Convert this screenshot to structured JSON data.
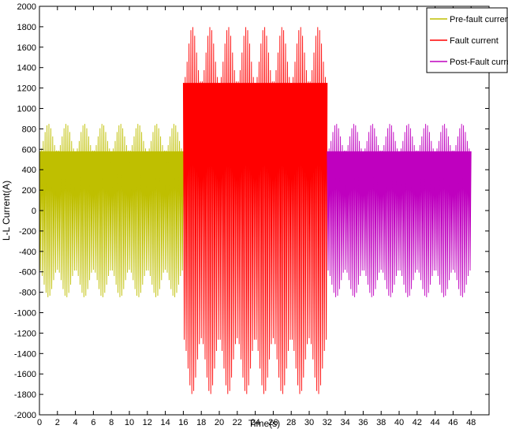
{
  "chart_data": {
    "type": "line",
    "xlabel": "Time(s)",
    "ylabel": "L-L Current(A)",
    "xlim": [
      0,
      50
    ],
    "ylim": [
      -2000,
      2000
    ],
    "x_ticks": [
      0,
      2,
      4,
      6,
      8,
      10,
      12,
      14,
      16,
      18,
      20,
      22,
      24,
      26,
      28,
      30,
      32,
      34,
      36,
      38,
      40,
      42,
      44,
      46,
      48
    ],
    "y_ticks": [
      -2000,
      -1800,
      -1600,
      -1400,
      -1200,
      -1000,
      -800,
      -600,
      -400,
      -200,
      0,
      200,
      400,
      600,
      800,
      1000,
      1200,
      1400,
      1600,
      1800,
      2000
    ],
    "grid": false,
    "legend_position": "top-right",
    "series": [
      {
        "name": "Pre-fault current",
        "color": "#bfbf00",
        "x_start": 0,
        "x_end": 16,
        "peak": 850,
        "envelope_min": 580,
        "envelope_periods": 8
      },
      {
        "name": "Fault current",
        "color": "#ff0000",
        "x_start": 16,
        "x_end": 32,
        "peak": 1800,
        "envelope_min": 1250,
        "envelope_periods": 8
      },
      {
        "name": "Post-Fault current",
        "color": "#bf00bf",
        "x_start": 32,
        "x_end": 48,
        "peak": 850,
        "envelope_min": 580,
        "envelope_periods": 8
      }
    ]
  }
}
